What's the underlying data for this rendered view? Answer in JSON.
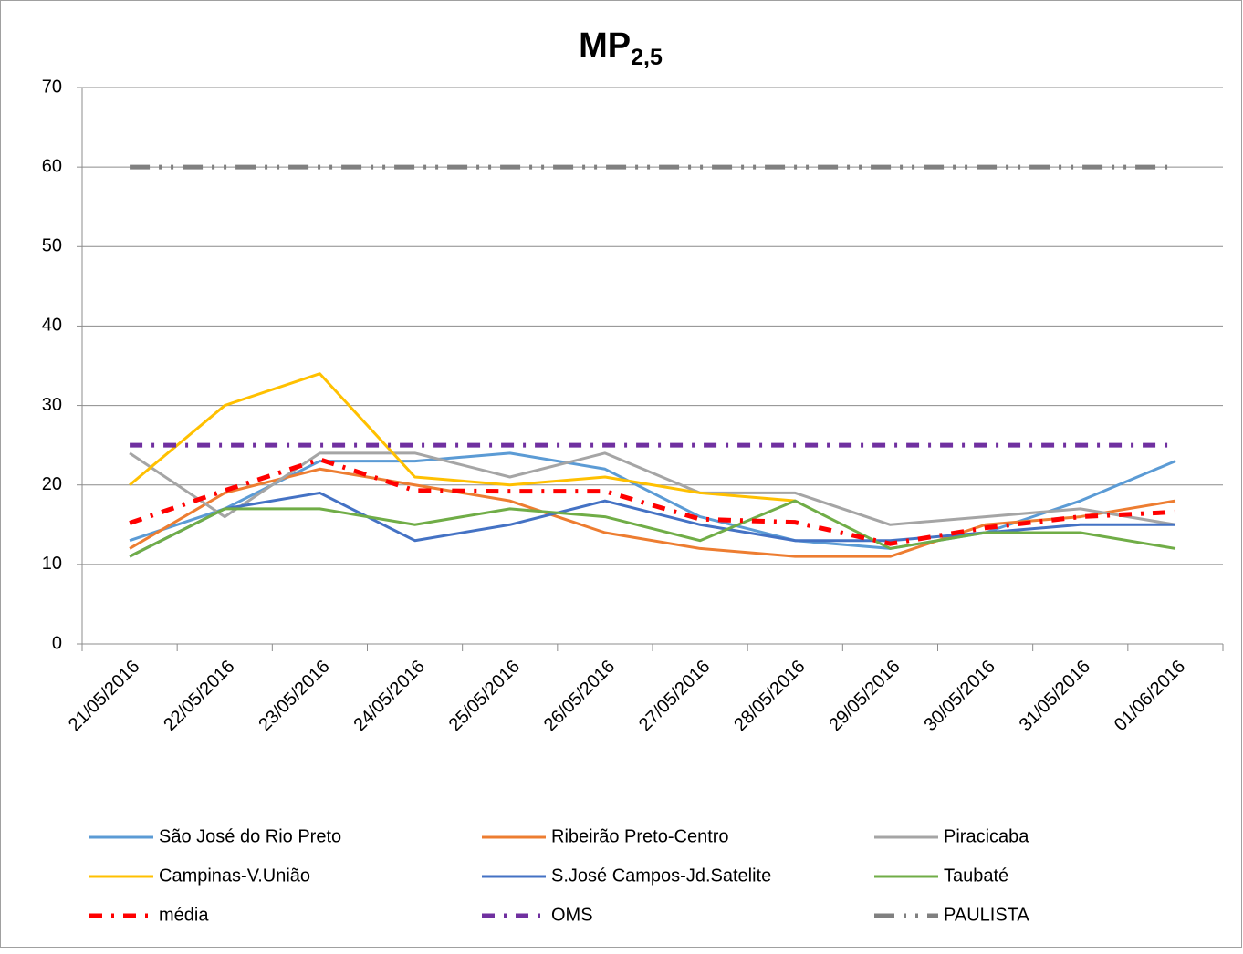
{
  "chart_data": {
    "type": "line",
    "title": "MP",
    "title_subscript": "2,5",
    "categories": [
      "21/05/2016",
      "22/05/2016",
      "23/05/2016",
      "24/05/2016",
      "25/05/2016",
      "26/05/2016",
      "27/05/2016",
      "28/05/2016",
      "29/05/2016",
      "30/05/2016",
      "31/05/2016",
      "01/06/2016"
    ],
    "series": [
      {
        "name": "São José do Rio Preto",
        "color": "#5b9bd5",
        "dash": "solid",
        "values": [
          13,
          17,
          23,
          23,
          24,
          22,
          16,
          13,
          12,
          14,
          18,
          23
        ]
      },
      {
        "name": "Ribeirão Preto-Centro",
        "color": "#ed7d31",
        "dash": "solid",
        "values": [
          12,
          19,
          22,
          20,
          18,
          14,
          12,
          11,
          11,
          15,
          16,
          18
        ]
      },
      {
        "name": "Piracicaba",
        "color": "#a5a5a5",
        "dash": "solid",
        "values": [
          24,
          16,
          24,
          24,
          21,
          24,
          19,
          19,
          15,
          16,
          17,
          15
        ]
      },
      {
        "name": "Campinas-V.União",
        "color": "#ffc000",
        "dash": "solid",
        "values": [
          20,
          30,
          34,
          21,
          20,
          21,
          19,
          18,
          null,
          null,
          null,
          null
        ]
      },
      {
        "name": "S.José Campos-Jd.Satelite",
        "color": "#4472c4",
        "dash": "solid",
        "values": [
          11,
          17,
          19,
          13,
          15,
          18,
          15,
          13,
          13,
          14,
          15,
          15
        ]
      },
      {
        "name": "Taubaté",
        "color": "#70ad47",
        "dash": "solid",
        "values": [
          11,
          17,
          17,
          15,
          17,
          16,
          13,
          18,
          12,
          14,
          14,
          12
        ]
      },
      {
        "name": "média",
        "color": "#ff0000",
        "dash": "dash-dot",
        "values": [
          15.2,
          19.3,
          23.2,
          19.3,
          19.2,
          19.2,
          15.7,
          15.3,
          12.6,
          14.6,
          16.0,
          16.6
        ]
      },
      {
        "name": "OMS",
        "color": "#7030a0",
        "dash": "dash-dot",
        "values": [
          25,
          25,
          25,
          25,
          25,
          25,
          25,
          25,
          25,
          25,
          25,
          25
        ]
      },
      {
        "name": "PAULISTA",
        "color": "#808080",
        "dash": "long-dash-dot-dot",
        "values": [
          60,
          60,
          60,
          60,
          60,
          60,
          60,
          60,
          60,
          60,
          60,
          60
        ]
      }
    ],
    "ylim": [
      0,
      70
    ],
    "yticks": [
      0,
      10,
      20,
      30,
      40,
      50,
      60,
      70
    ],
    "grid": true,
    "legend": "bottom"
  }
}
